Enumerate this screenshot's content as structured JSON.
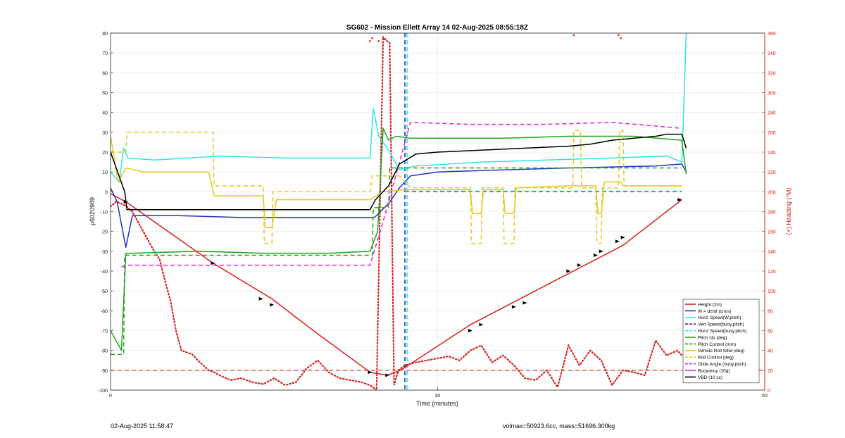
{
  "footer": {
    "date": "02-Aug-2025 11:58:47",
    "info": "volmax=50923.6cc, mass=51696.300kg"
  },
  "chart_data": {
    "type": "line",
    "title": "SG602 - Mission Ellett Array 14 02-Aug-2025 08:55:18Z",
    "xlabel": "Time (minutes)",
    "ylabel": "p6020989",
    "y2label": "(+) Heading (°M)",
    "xlim": [
      0,
      60
    ],
    "ylim": [
      -100,
      80
    ],
    "y2lim": [
      0,
      360
    ],
    "x_ticks": [
      "0",
      "30",
      "60"
    ],
    "y_ticks": [
      "-100",
      "-90",
      "-80",
      "-70",
      "-60",
      "-50",
      "-40",
      "-30",
      "-20",
      "-10",
      "0",
      "10",
      "20",
      "30",
      "40",
      "50",
      "60",
      "70",
      "80"
    ],
    "y2_ticks": [
      "0",
      "20",
      "40",
      "60",
      "80",
      "100",
      "120",
      "140",
      "160",
      "180",
      "200",
      "220",
      "240",
      "260",
      "280",
      "300",
      "320",
      "340",
      "360"
    ],
    "grid": true,
    "legend_position": "bottom-right",
    "colors": {
      "red": "#d9211f",
      "blue": "#1f32c8",
      "cyan": "#2de6e6",
      "green": "#1ea51e",
      "yellow": "#e6c81e",
      "magenta": "#e11ee1",
      "black": "#000000"
    },
    "vertical_lines": [
      {
        "x": 27.0,
        "color": "blue",
        "style": "dashed"
      },
      {
        "x": 27.2,
        "color": "cyan",
        "style": "dashed"
      }
    ],
    "series": [
      {
        "name": "Height (2m)",
        "color": "red",
        "style": "solid",
        "x": [
          0,
          1.4,
          9.4,
          14.8,
          18.6,
          23.8,
          25.4,
          26.6,
          28.0,
          33.0,
          40.0,
          47.0,
          52.4
        ],
        "y": [
          -1,
          -5,
          -36,
          -54,
          -70,
          -91,
          -92.5,
          -90,
          -85,
          -67,
          -47,
          -27,
          -4
        ]
      },
      {
        "name": "W = dz/dt (cm/s)",
        "color": "blue",
        "style": "solid",
        "x": [
          0,
          0.6,
          1.4,
          2.0,
          6,
          12,
          18,
          23.8,
          24.2,
          25.5,
          26.5,
          27.5,
          30,
          36,
          42,
          46,
          50,
          52.4,
          52.8
        ],
        "y": [
          2,
          -5,
          -28,
          -12,
          -12,
          -13,
          -13,
          -13,
          -13,
          -6,
          2,
          8,
          10,
          11,
          12,
          12.5,
          13,
          14,
          10
        ]
      },
      {
        "name": "Horiz Speed(W,pitch)",
        "color": "cyan",
        "style": "solid",
        "x": [
          0,
          0.8,
          1.2,
          1.6,
          4,
          10,
          16,
          23.8,
          24.1,
          24.6,
          25.5,
          26.5,
          28,
          34,
          40,
          46,
          51,
          52.4,
          52.8
        ],
        "y": [
          10,
          5,
          22,
          17,
          16,
          18,
          17,
          17,
          42,
          28,
          21,
          11,
          13,
          15,
          16,
          17,
          18,
          15,
          80
        ]
      },
      {
        "name": "Vert Speed(buoy,pitch)",
        "color": "blue",
        "style": "dashed",
        "x": [
          27.0,
          52.4
        ],
        "y": [
          0,
          0
        ]
      },
      {
        "name": "Horiz Speed(buoy,pitch)",
        "color": "cyan",
        "style": "dashed",
        "x": [
          27.0,
          52.4
        ],
        "y": [
          0.3,
          0.3
        ]
      },
      {
        "name": "Pitch Up (deg)",
        "color": "green",
        "style": "solid",
        "x": [
          0,
          1.0,
          1.4,
          2,
          8,
          14,
          20,
          23.8,
          24.5,
          25.0,
          25.5,
          26.2,
          27.5,
          30,
          36,
          42,
          48,
          52.4,
          52.8
        ],
        "y": [
          -70,
          -80,
          -31,
          -31,
          -30,
          -31,
          -31,
          -30,
          -20,
          32,
          26,
          28,
          27,
          27,
          27,
          28,
          28,
          26,
          9
        ]
      },
      {
        "name": "Pitch Control (mm)",
        "color": "green",
        "style": "dashed",
        "x": [
          0,
          1.2,
          1.3,
          24.0,
          24.1,
          25.5,
          25.6,
          52.4
        ],
        "y": [
          -82,
          -82,
          -32,
          -32,
          -8,
          -8,
          12,
          12
        ]
      },
      {
        "name": "Vehicle Roll Stbd (deg)",
        "color": "yellow",
        "style": "solid",
        "x": [
          0,
          0.7,
          1.4,
          3,
          9,
          9.5,
          14.0,
          14.2,
          14.8,
          15.2,
          20,
          23.8,
          25.0,
          27.0,
          30,
          33.0,
          33.2,
          34.0,
          34.2,
          36.0,
          36.2,
          37.0,
          37.2,
          42,
          44.5,
          44.7,
          45.0,
          45.3,
          46.8,
          47.0,
          52.4
        ],
        "y": [
          28,
          5,
          12,
          10,
          10,
          -2,
          -2,
          -18,
          -18,
          -4,
          -4,
          -4,
          0,
          1,
          1,
          1,
          -11,
          -11,
          1,
          1,
          -11,
          -11,
          2,
          3,
          3,
          -11,
          -11,
          5,
          5,
          3,
          3
        ]
      },
      {
        "name": "Roll Control (deg)",
        "color": "yellow",
        "style": "dashed",
        "x": [
          0,
          1.4,
          1.5,
          9.4,
          9.5,
          14.0,
          14.1,
          14.8,
          14.9,
          23.8,
          24.0,
          26.5,
          27.5,
          33.0,
          33.1,
          34.0,
          34.1,
          36.0,
          36.1,
          37.0,
          37.1,
          42.4,
          42.5,
          43.1,
          43.2,
          44.5,
          44.6,
          45.0,
          45.1,
          46.6,
          46.7,
          47.0,
          47.1,
          52.4
        ],
        "y": [
          20,
          20,
          30,
          30,
          3,
          3,
          -26,
          -26,
          0,
          0,
          8,
          8,
          2,
          2,
          -26,
          -26,
          2,
          2,
          -26,
          -26,
          2,
          2,
          31,
          31,
          2,
          2,
          -26,
          -26,
          2,
          2,
          31,
          31,
          3,
          3
        ]
      },
      {
        "name": "Glide Angle (buoy,pitch)",
        "color": "magenta",
        "style": "dashed",
        "x": [
          1.0,
          1.4,
          10,
          20,
          23.8,
          25.0,
          26.5,
          27.5,
          33,
          40,
          46,
          52.4
        ],
        "y": [
          -38,
          -37,
          -37,
          -37,
          -37,
          -15,
          15,
          35,
          34,
          34,
          35,
          32
        ]
      },
      {
        "name": "Buoyancy (10g)",
        "color": "magenta",
        "style": "solid",
        "x": [],
        "y": []
      },
      {
        "name": "VBD (10 cc)",
        "color": "black",
        "style": "solid",
        "x": [
          0,
          1.3,
          1.5,
          23.8,
          24.3,
          25.5,
          26.5,
          28.0,
          30,
          34,
          38,
          42,
          44,
          46,
          48,
          50,
          51,
          52.4,
          52.8
        ],
        "y": [
          20,
          0,
          -9,
          -9,
          -4,
          3,
          14,
          19,
          20,
          21,
          22,
          23,
          24,
          26,
          27,
          28,
          29,
          29,
          22
        ]
      }
    ],
    "heading_series": {
      "name": "Heading",
      "color": "red",
      "style": "dotted",
      "x": [
        0,
        0.5,
        1.0,
        1.5,
        2.0,
        2.5,
        3.0,
        3.5,
        4.0,
        4.5,
        5.0,
        5.5,
        6.0,
        6.5,
        7.0,
        7.5,
        8.0,
        8.5,
        9.0,
        9.5,
        10,
        11,
        12,
        13,
        14,
        15,
        16,
        17,
        18,
        19,
        20,
        21,
        22,
        23,
        23.8,
        24.4,
        25.0,
        25.6,
        26.0,
        26.4,
        27.0,
        28,
        29,
        30,
        31,
        32,
        33,
        34,
        35,
        36,
        37,
        38,
        39,
        40,
        41,
        42,
        43,
        44,
        45,
        46,
        47,
        48,
        49,
        50,
        51,
        52,
        52.4
      ],
      "y": [
        185,
        190,
        188,
        185,
        180,
        170,
        160,
        150,
        140,
        132,
        110,
        90,
        60,
        40,
        38,
        36,
        30,
        25,
        20,
        18,
        15,
        10,
        12,
        8,
        6,
        12,
        5,
        8,
        22,
        30,
        18,
        12,
        10,
        8,
        5,
        0,
        355,
        350,
        5,
        20,
        25,
        28,
        30,
        32,
        34,
        30,
        40,
        45,
        28,
        35,
        25,
        12,
        10,
        20,
        3,
        45,
        25,
        40,
        30,
        5,
        20,
        18,
        15,
        50,
        35,
        40,
        35
      ],
      "outliers_x": [
        23.8,
        24.0,
        24.6,
        25.0,
        25.2,
        42.5,
        46.6,
        46.8
      ],
      "outliers_y": [
        352,
        355,
        352,
        356,
        354,
        358,
        358,
        355
      ]
    },
    "height_markers_x": [
      1.4,
      9.4,
      13.8,
      14.8,
      23.8,
      25.4,
      33.0,
      34.0,
      37.0,
      38.0,
      42.0,
      43.0,
      44.5,
      45.0,
      46.5,
      47.0,
      52.2
    ],
    "height_markers_y": [
      -5,
      -36,
      -54,
      -57,
      -91,
      -92.5,
      -70,
      -67,
      -58,
      -56,
      -40,
      -37,
      -32,
      -30,
      -25,
      -23,
      -4
    ]
  }
}
